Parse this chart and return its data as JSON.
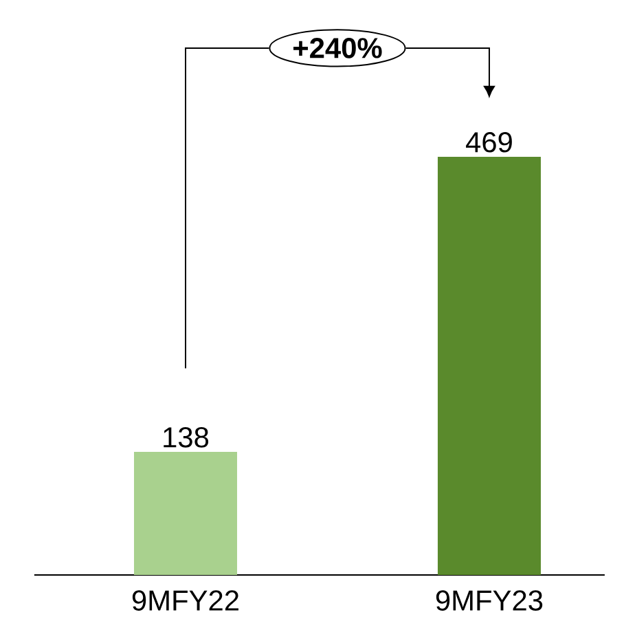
{
  "chart_data": {
    "type": "bar",
    "categories": [
      "9MFY22",
      "9MFY23"
    ],
    "values": [
      138,
      469
    ],
    "colors": [
      "#a9d18e",
      "#5a8a2c"
    ],
    "data_labels": true,
    "annotations": [
      "+240%"
    ]
  }
}
